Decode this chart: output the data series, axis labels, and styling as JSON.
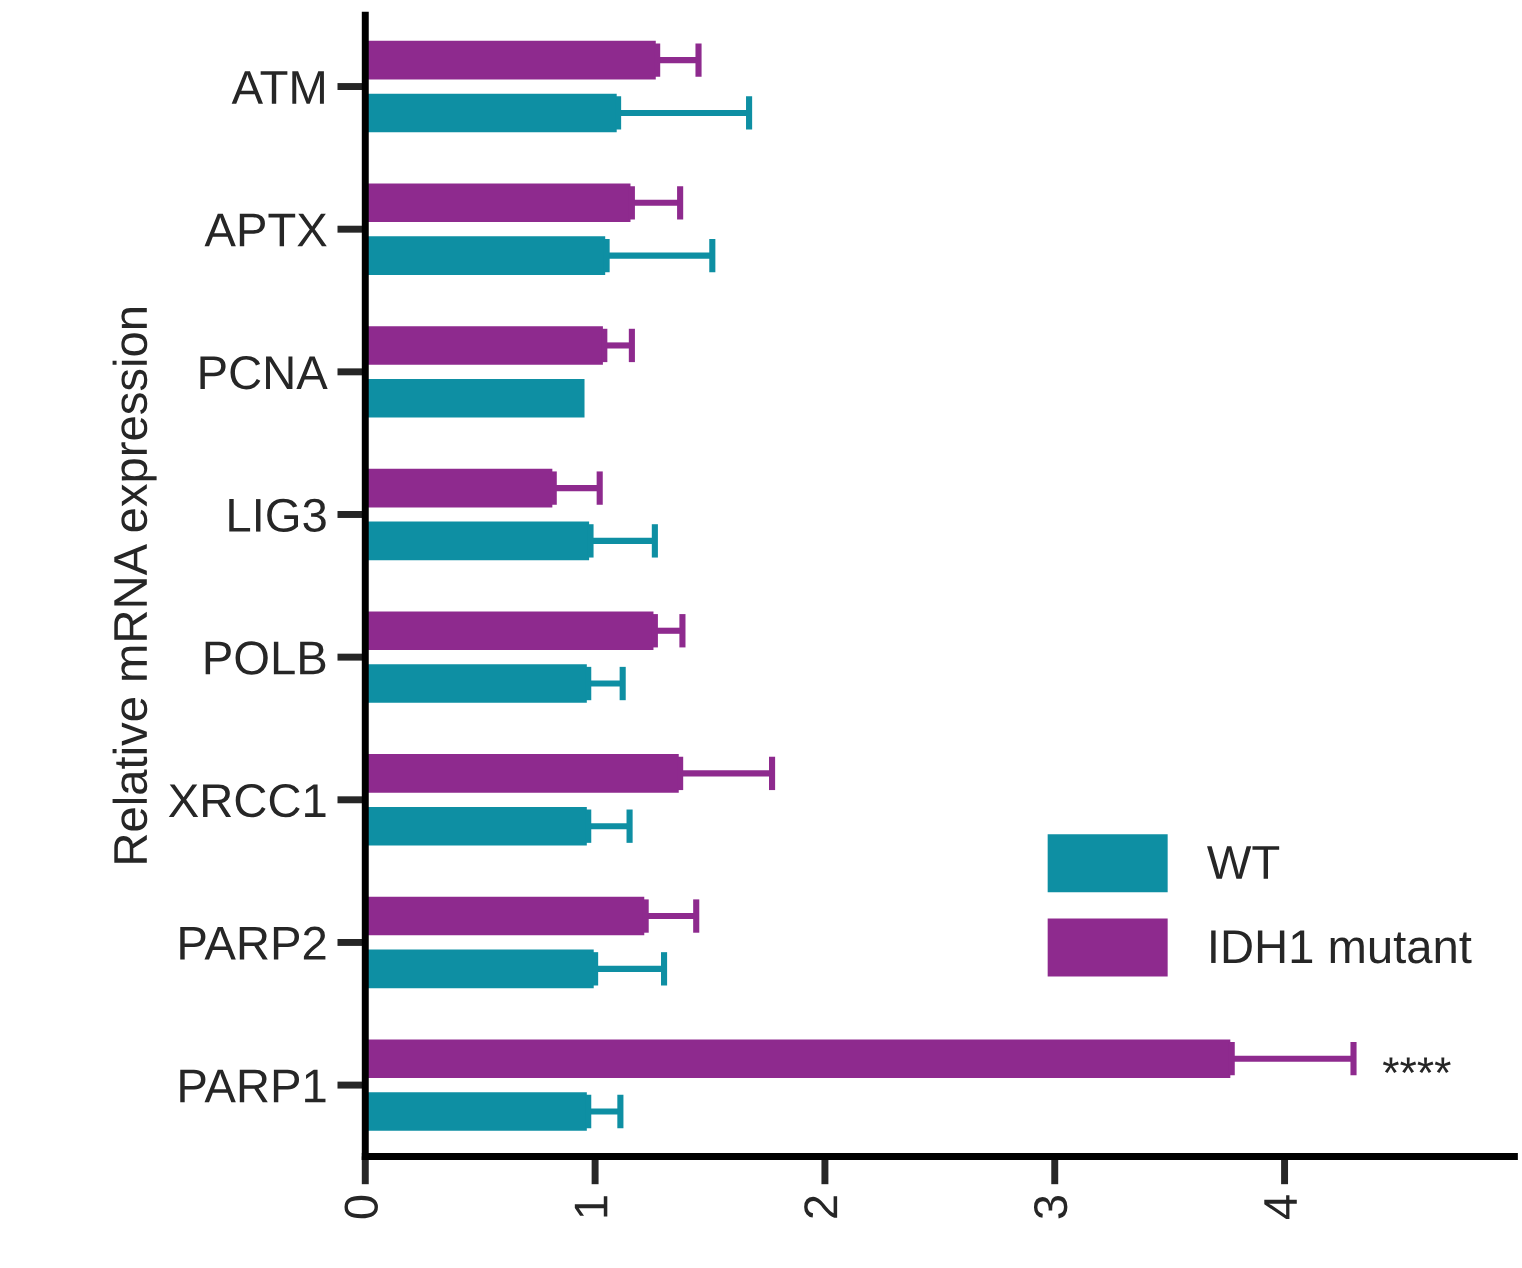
{
  "chart_data": {
    "type": "bar",
    "orientation": "horizontal",
    "ylabel": "Relative mRNA expression",
    "categories": [
      "ATM",
      "APTX",
      "PCNA",
      "LIG3",
      "POLB",
      "XRCC1",
      "PARP2",
      "PARP1"
    ],
    "series": [
      {
        "name": "WT",
        "color": "#0e8fa3",
        "values": [
          1.1,
          1.05,
          0.96,
          0.98,
          0.97,
          0.97,
          1.0,
          0.97
        ],
        "errors": [
          [
            1.1,
            1.67
          ],
          [
            1.05,
            1.51
          ],
          null,
          [
            0.98,
            1.26
          ],
          [
            0.97,
            1.12
          ],
          [
            0.97,
            1.15
          ],
          [
            1.0,
            1.3
          ],
          [
            0.97,
            1.11
          ]
        ]
      },
      {
        "name": "IDH1 mutant",
        "color": "#8e2a8e",
        "values": [
          1.27,
          1.16,
          1.04,
          0.82,
          1.26,
          1.37,
          1.22,
          3.77
        ],
        "errors": [
          [
            1.27,
            1.45
          ],
          [
            1.16,
            1.37
          ],
          [
            1.04,
            1.16
          ],
          [
            0.82,
            1.02
          ],
          [
            1.26,
            1.38
          ],
          [
            1.37,
            1.77
          ],
          [
            1.22,
            1.44
          ],
          [
            3.77,
            4.3
          ]
        ]
      }
    ],
    "xlim": [
      0,
      5
    ],
    "xticks": [
      0,
      1,
      2,
      3,
      4
    ],
    "grid": false,
    "legend": "right",
    "annotations": [
      "****"
    ]
  }
}
